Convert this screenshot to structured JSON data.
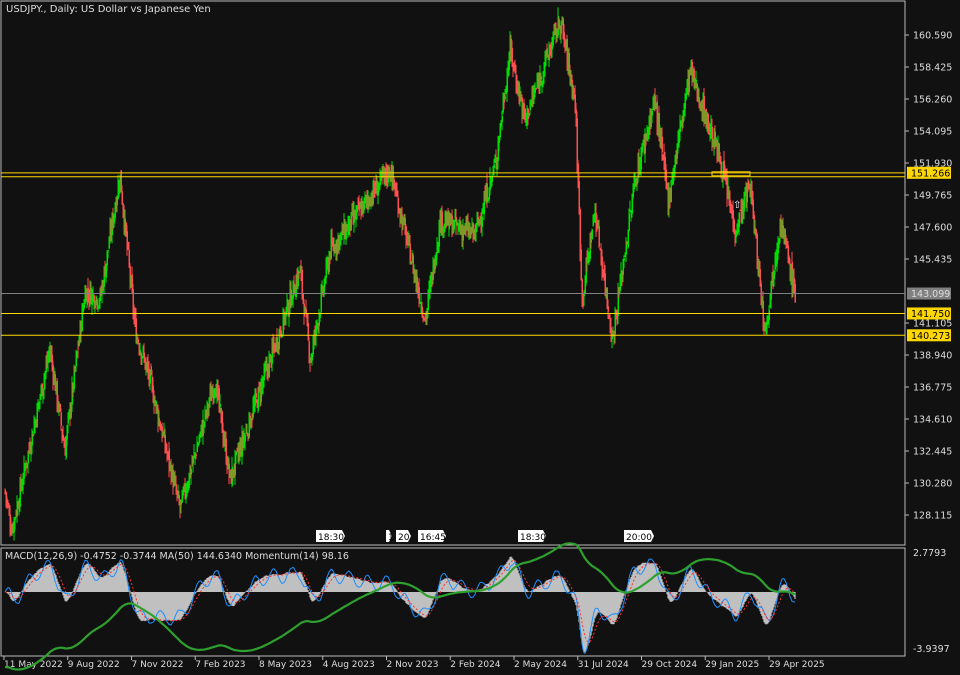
{
  "window": {
    "title": "USDJPY., Daily:  US Dollar vs Japanese Yen"
  },
  "indicator": {
    "label": "MACD(12,26,9) -0.4752 -0.3744 MA(50) 144.6340 Momentum(14) 98.16",
    "axis_top": "2.7793",
    "axis_bottom": "-3.9397"
  },
  "chart_data": {
    "type": "candlestick",
    "symbol": "USDJPY.",
    "timeframe": "Daily",
    "ylim": [
      128.115,
      160.59
    ],
    "y_ticks": [
      "160.590",
      "158.425",
      "156.260",
      "154.095",
      "151.930",
      "149.765",
      "147.600",
      "145.435",
      "141.105",
      "138.940",
      "136.775",
      "134.610",
      "132.445",
      "130.280",
      "128.115"
    ],
    "x_ticks": [
      "11 May 2022",
      "9 Aug 2022",
      "7 Nov 2022",
      "7 Feb 2023",
      "8 May 2023",
      "4 Aug 2023",
      "2 Nov 2023",
      "2 Feb 2024",
      "2 May 2024",
      "31 Jul 2024",
      "29 Oct 2024",
      "29 Jan 2025",
      "29 Apr 2025"
    ],
    "close_path": [
      [
        "2022-05-12",
        129.8
      ],
      [
        "2022-05-22",
        127.1
      ],
      [
        "2022-07-15",
        139.3
      ],
      [
        "2022-08-05",
        132.5
      ],
      [
        "2022-09-03",
        143.3
      ],
      [
        "2022-09-24",
        142.7
      ],
      [
        "2022-10-22",
        151.1
      ],
      [
        "2022-11-13",
        140.6
      ],
      [
        "2022-12-04",
        137.2
      ],
      [
        "2023-01-15",
        128.5
      ],
      [
        "2023-03-06",
        137.2
      ],
      [
        "2023-03-27",
        130.5
      ],
      [
        "2023-06-06",
        140.6
      ],
      [
        "2023-07-04",
        144.7
      ],
      [
        "2023-07-19",
        138.6
      ],
      [
        "2023-08-16",
        146.0
      ],
      [
        "2023-11-09",
        151.5
      ],
      [
        "2023-12-29",
        141.3
      ],
      [
        "2024-01-19",
        148.1
      ],
      [
        "2024-03-08",
        147.1
      ],
      [
        "2024-04-06",
        151.8
      ],
      [
        "2024-04-27",
        159.6
      ],
      [
        "2024-05-18",
        154.8
      ],
      [
        "2024-07-07",
        161.6
      ],
      [
        "2024-07-28",
        156.2
      ],
      [
        "2024-08-07",
        142.7
      ],
      [
        "2024-08-25",
        148.8
      ],
      [
        "2024-09-19",
        140.0
      ],
      [
        "2024-10-21",
        150.8
      ],
      [
        "2024-11-18",
        156.2
      ],
      [
        "2024-12-07",
        149.4
      ],
      [
        "2025-01-07",
        158.2
      ],
      [
        "2025-02-19",
        152.1
      ],
      [
        "2025-03-12",
        147.4
      ],
      [
        "2025-04-02",
        150.5
      ],
      [
        "2025-04-23",
        140.6
      ],
      [
        "2025-05-15",
        148.1
      ],
      [
        "2025-06-05",
        143.0
      ]
    ],
    "levels": [
      {
        "price": 151.266,
        "label": "151.266",
        "color": "#ffd700"
      },
      {
        "price": 151.0,
        "label": "",
        "color": "#ffd700"
      },
      {
        "price": 143.099,
        "label": "143.099",
        "color": "#808080"
      },
      {
        "price": 141.75,
        "label": "141.750",
        "color": "#ffd700"
      },
      {
        "price": 140.273,
        "label": "140.273",
        "color": "#ffd700"
      }
    ],
    "session_markers": [
      "18:30",
      "1",
      "20",
      "16:45",
      "18:30",
      "20:00"
    ],
    "colors": {
      "up": "#00e000",
      "down": "#ff5050",
      "macd_hist": "#c0c0c0",
      "macd_line": "#1e90ff",
      "signal": "#ff3030",
      "ma": "#2ea02e",
      "background": "#111111"
    }
  }
}
